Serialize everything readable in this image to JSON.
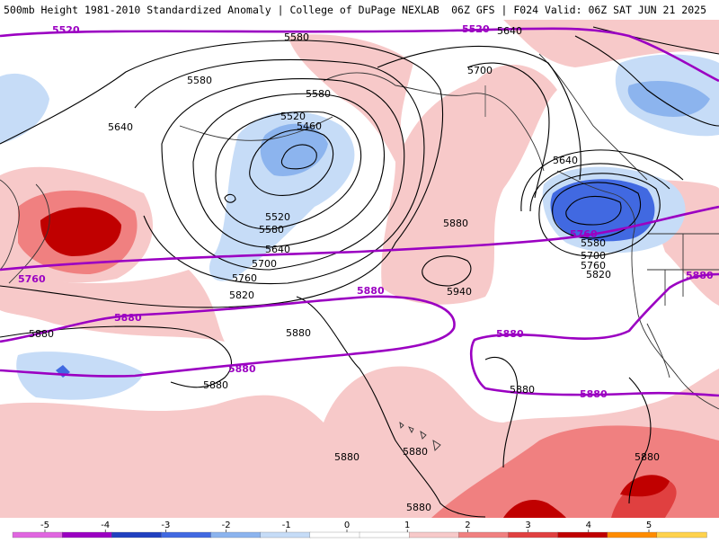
{
  "header": {
    "left": "500mb Height 1981-2010 Standardized Anomaly | College of DuPage NEXLAB",
    "right": "06Z GFS | F024 Valid: 06Z SAT JUN 21 2025"
  },
  "colors": {
    "purple_contour": "#9b00c2",
    "height_contour": "#000000",
    "coast": "#333333",
    "anom_neg1": "#c6dcf7",
    "anom_neg2": "#8cb4ee",
    "anom_neg3": "#4169e1",
    "anom_pos1": "#f7c9c9",
    "anom_pos2": "#f08080",
    "anom_pos3": "#e04040",
    "anom_pos4": "#c00000"
  },
  "map": {
    "height_labels": [
      "5520",
      "5580",
      "5640",
      "5700",
      "5760",
      "5820",
      "5880",
      "5940",
      "5460"
    ],
    "purple_labels": [
      "5520",
      "5760",
      "5880"
    ]
  },
  "colorbar": {
    "ticks": [
      "-5",
      "-4",
      "-3",
      "-2",
      "-1",
      "0",
      "1",
      "2",
      "3",
      "4",
      "5"
    ],
    "colors": [
      "#e066e0",
      "#9b00c2",
      "#2040c0",
      "#4169e1",
      "#8cb4ee",
      "#c6dcf7",
      "#ffffff",
      "#ffffff",
      "#f7c9c9",
      "#f08080",
      "#e04040",
      "#c00000",
      "#ff8c00",
      "#ffd24d"
    ]
  }
}
